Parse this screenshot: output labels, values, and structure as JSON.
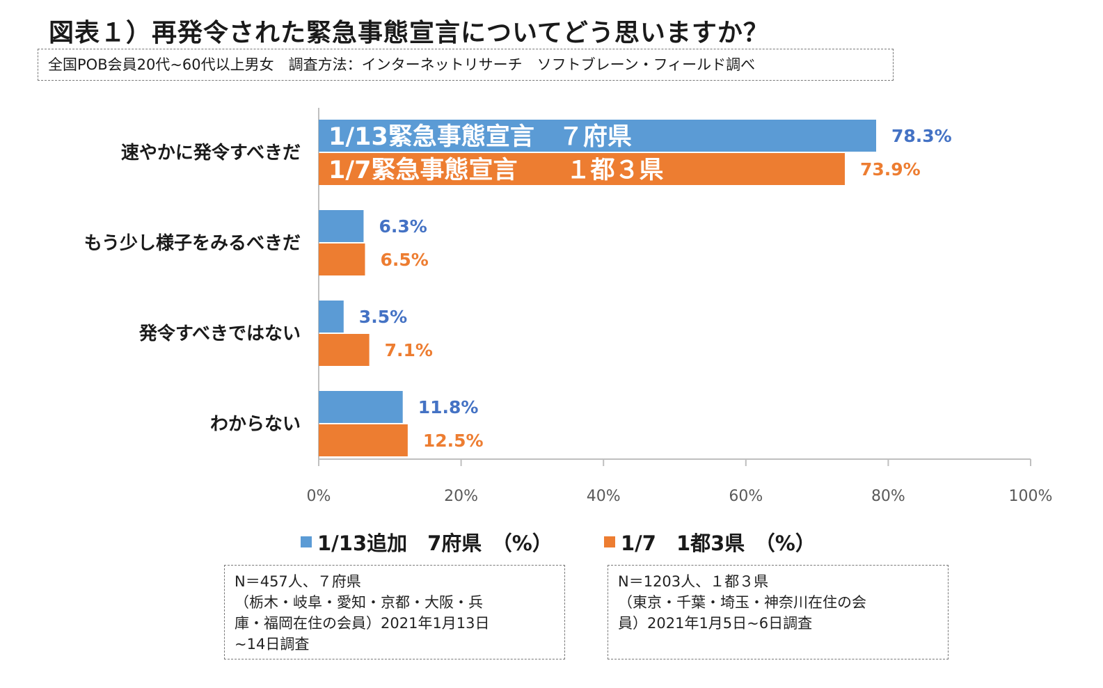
{
  "title": "図表１）再発令された緊急事態宣言についてどう思いますか？",
  "subtitle": "全国POB会員20代~60代以上男女　調査方法：インターネットリサーチ　ソフトブレーン・フィールド調べ",
  "colors": {
    "series1": "#5B9BD5",
    "series2": "#ED7D31",
    "label1": "#4472C4",
    "label2": "#ED7D31"
  },
  "chart_data": {
    "type": "bar",
    "orientation": "horizontal",
    "categories": [
      "速やかに発令すべきだ",
      "もう少し様子をみるべきだ",
      "発令すべきではない",
      "わからない"
    ],
    "series": [
      {
        "name": "1/13追加　7府県　（%）",
        "values": [
          78.3,
          6.3,
          3.5,
          11.8
        ],
        "labels": [
          "78.3%",
          "6.3%",
          "3.5%",
          "11.8%"
        ]
      },
      {
        "name": "1/7　1都3県　（%）",
        "values": [
          73.9,
          6.5,
          7.1,
          12.5
        ],
        "labels": [
          "73.9%",
          "6.5%",
          "7.1%",
          "12.5%"
        ]
      }
    ],
    "xlim": [
      0,
      100
    ],
    "ticks": [
      "0%",
      "20%",
      "40%",
      "60%",
      "80%",
      "100%"
    ],
    "tick_values": [
      0,
      20,
      40,
      60,
      80,
      100
    ],
    "annotations": [
      "1/13緊急事態宣言　７府県",
      "1/7緊急事態宣言　　１都３県"
    ],
    "legend_position": "bottom",
    "grid": false
  },
  "legend": [
    {
      "label": "1/13追加　7府県　（%）"
    },
    {
      "label": "1/7　1都3県　（%）"
    }
  ],
  "notes": [
    {
      "lines": [
        "N＝457人、７府県",
        "（栃木・岐阜・愛知・京都・大阪・兵",
        "庫・福岡在住の会員）2021年1月13日",
        "~14日調査"
      ]
    },
    {
      "lines": [
        "N＝1203人、１都３県",
        "（東京・千葉・埼玉・神奈川在住の会",
        "員）2021年1月5日~6日調査"
      ]
    }
  ]
}
